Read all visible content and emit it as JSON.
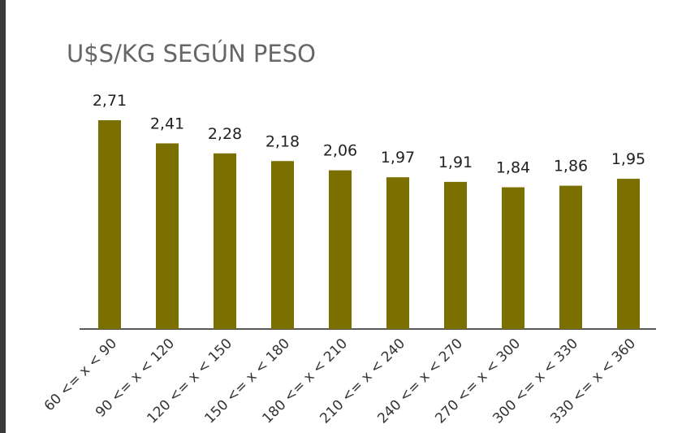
{
  "chart_data": {
    "type": "bar",
    "title": "U$S/KG SEGÚN PESO",
    "categories": [
      "60 <= x < 90",
      "90 <= x < 120",
      "120 <= x < 150",
      "150 <= x < 180",
      "180 <= x < 210",
      "210 <= x < 240",
      "240 <= x < 270",
      "270 <= x < 300",
      "300 <= x < 330",
      "330 <= x < 360"
    ],
    "values": [
      2.71,
      2.41,
      2.28,
      2.18,
      2.06,
      1.97,
      1.91,
      1.84,
      1.86,
      1.95
    ],
    "value_labels": [
      "2,71",
      "2,41",
      "2,28",
      "2,18",
      "2,06",
      "1,97",
      "1,91",
      "1,84",
      "1,86",
      "1,95"
    ],
    "color": "#7b6f00"
  }
}
